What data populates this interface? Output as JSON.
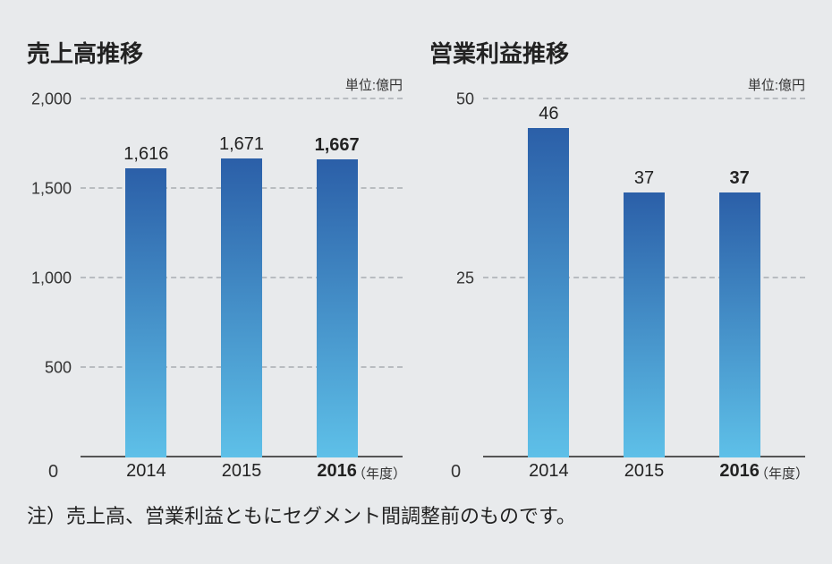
{
  "background_color": "#e8eaec",
  "bar_gradient_top": "#2b5fa8",
  "bar_gradient_bottom": "#5ec0e8",
  "grid_color": "#b8bcc0",
  "baseline_color": "#555555",
  "text_color": "#222222",
  "unit_label": "単位:億円",
  "zero_label": "0",
  "nendo_label": "（年度）",
  "footnote": "注）売上高、営業利益ともにセグメント間調整前のものです。",
  "panels": [
    {
      "title": "売上高推移",
      "ymax": 2000,
      "ticks": [
        {
          "v": 2000,
          "label": "2,000"
        },
        {
          "v": 1500,
          "label": "1,500"
        },
        {
          "v": 1000,
          "label": "1,000"
        },
        {
          "v": 500,
          "label": "500"
        }
      ],
      "bars": [
        {
          "x": "2014",
          "v": 1616,
          "label": "1,616",
          "bold": false
        },
        {
          "x": "2015",
          "v": 1671,
          "label": "1,671",
          "bold": false
        },
        {
          "x": "2016",
          "v": 1667,
          "label": "1,667",
          "bold": true
        }
      ]
    },
    {
      "title": "営業利益推移",
      "ymax": 50,
      "ticks": [
        {
          "v": 50,
          "label": "50"
        },
        {
          "v": 25,
          "label": "25"
        }
      ],
      "bars": [
        {
          "x": "2014",
          "v": 46,
          "label": "46",
          "bold": false
        },
        {
          "x": "2015",
          "v": 37,
          "label": "37",
          "bold": false
        },
        {
          "x": "2016",
          "v": 37,
          "label": "37",
          "bold": true
        }
      ]
    }
  ]
}
